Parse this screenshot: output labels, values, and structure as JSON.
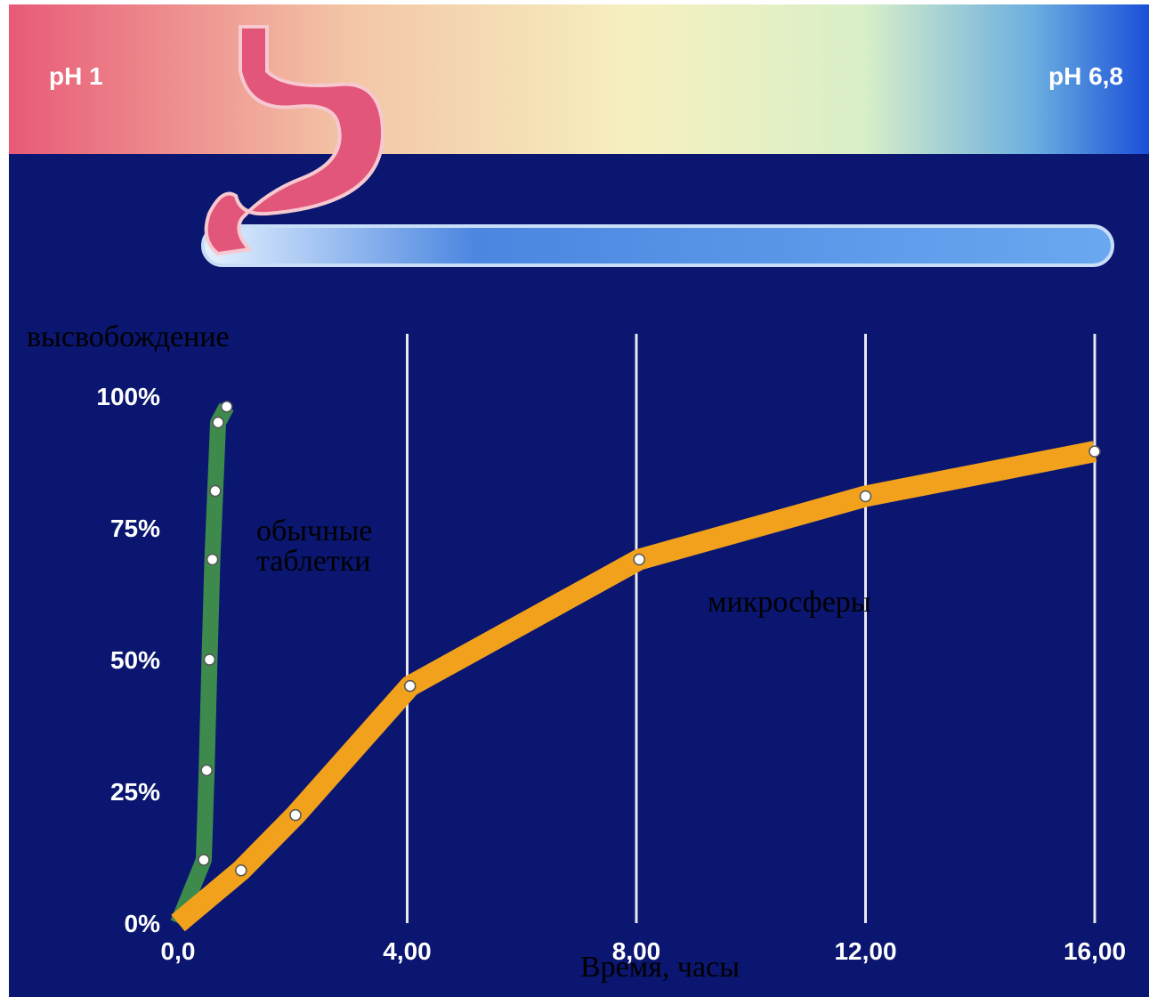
{
  "chart_data": {
    "type": "line",
    "x_label": "Время, часы",
    "y_label": "высвобождение",
    "annotations": [
      "pH 1",
      "pH 6,8"
    ],
    "xlim": [
      0,
      16
    ],
    "ylim": [
      0,
      100
    ],
    "xticks": [
      {
        "value": 0,
        "label": "0,0"
      },
      {
        "value": 4,
        "label": "4,00"
      },
      {
        "value": 8,
        "label": "8,00"
      },
      {
        "value": 12,
        "label": "12,00"
      },
      {
        "value": 16,
        "label": "16,00"
      }
    ],
    "yticks": [
      {
        "value": 0,
        "label": "0%"
      },
      {
        "value": 25,
        "label": "25%"
      },
      {
        "value": 50,
        "label": "50%"
      },
      {
        "value": 75,
        "label": "75%"
      },
      {
        "value": 100,
        "label": "100%"
      }
    ],
    "grid": "x",
    "series": [
      {
        "name": "обычные таблетки",
        "color": "#3e8a4c",
        "width": 18,
        "x": [
          0,
          0.45,
          0.5,
          0.55,
          0.6,
          0.65,
          0.7,
          0.85
        ],
        "values": [
          0,
          12,
          29,
          50,
          69,
          82,
          95,
          98
        ]
      },
      {
        "name": "микросферы",
        "color": "#f2a11c",
        "width": 24,
        "x": [
          0,
          1.1,
          2.05,
          4.05,
          8.05,
          12,
          16
        ],
        "values": [
          0,
          10,
          20.5,
          45,
          69,
          81,
          89.5
        ]
      }
    ]
  }
}
